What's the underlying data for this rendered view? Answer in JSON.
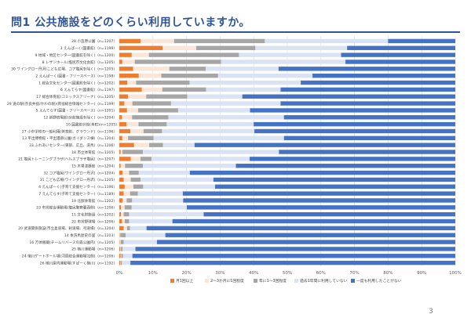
{
  "page": {
    "title": "問1 公共施設をどのくらい利用していますか。",
    "page_number": "3"
  },
  "colors": [
    "#ed7d31",
    "#fbe5d6",
    "#a6a6a6",
    "#dae3f3",
    "#4472c4"
  ],
  "chart_data": {
    "type": "bar",
    "orientation": "horizontal",
    "stacked": true,
    "xlim": [
      0,
      100
    ],
    "xticks": [
      "0%",
      "10%",
      "20%",
      "30%",
      "40%",
      "50%",
      "60%",
      "70%",
      "80%",
      "90%",
      "100%"
    ],
    "legend_position": "bottom",
    "categories": [
      "28 小笠原公園（n=1207）",
      "3 えんぱーく(図書館)（n=1199）",
      "9 地域・地区センター(図書館を除く)（n=1200）",
      "8 レザンホール(塩尻市文化会館)（n=1205）",
      "30 ワイングロー丹沢(こども広場、コア塩尻を除く)（n=1205）",
      "2 えんぱーく(図書・フリースペース)（n=1198）",
      "1 総合文化センター(図書館を除く)（n=1202）",
      "6 えんてらす(図書館)（n=1197）",
      "17 総合体育館(コミックスアリーナ)（n=1205）",
      "29 道の駅(奈良井宿/かわの駅)(両宿総合情報センター)（n=1199）",
      "5 えんてらす(図書・フリースペース)（n=1201）",
      "12 新野宿場館(分館施設を除く)（n=1204）",
      "10 図書館分館(本町)(n=1205)",
      "27 小中学校の一般利用(体育館、グラウンド)（n=1196）",
      "13 平出博物館・平出遺跡公園(ガイダンス棟)（n=1204）",
      "33 ふれあいセンター(東部、広丘、洗馬)（n=1206）",
      "18 市立体育館（n=1205）",
      "21 塩尻トレーニングプラザ(ヘルスプラザ塩尻)（n=1207）",
      "15 木曽漆器館（n=1204）",
      "32 コア塩尻(ワイングロー丹沢)（n=1204）",
      "31 こども広場(ワイングロー丹沢)（n=1205）",
      "4 えんぱーく(子育て支援センター)（n=1196）",
      "7 えんてらす(子育て支援センター)（n=1189）",
      "19 北部体育館（n=1202）",
      "23 市営総合運動場(塩尻警察署西側)（n=1206）",
      "11 文化財施設（n=1202）",
      "22 市営野球場（n=1206）",
      "20 武道関係施設(市立柔道場、剣道場、弓道場)（n=1204）",
      "14 本洗馬歴史の里（n=1203）",
      "16 万体飯蔵(チームリバースの森公園内)（n=1205）",
      "25 楢川運動場（n=1206）",
      "24 楢川ゲートボール場(河原総合運動場北側)（n=1206）",
      "26 楢川屋内運動場(すぱーく楢川)（n=1192）"
    ],
    "series": [
      {
        "name": "月1回以上",
        "values": [
          6.3,
          12.9,
          3.7,
          0.9,
          4.1,
          5.8,
          2.4,
          6.7,
          2.6,
          1.5,
          2.3,
          0.8,
          2.1,
          3.3,
          0.9,
          4.4,
          0.4,
          3.4,
          0.4,
          1.0,
          1.3,
          1.6,
          1.3,
          1.0,
          0.5,
          0.5,
          0.8,
          1.3,
          0.1,
          0.1,
          0.3,
          0.4,
          0.3
        ]
      },
      {
        "name": "2～3か月に1回程度",
        "values": [
          10.0,
          10.0,
          5.1,
          3.7,
          10.8,
          6.7,
          2.6,
          6.1,
          5.4,
          2.4,
          3.3,
          3.0,
          3.6,
          3.9,
          1.7,
          4.5,
          0.5,
          2.9,
          1.3,
          1.9,
          2.1,
          2.6,
          1.9,
          1.2,
          1.1,
          0.8,
          0.8,
          1.0,
          0.2,
          0.3,
          0.2,
          0.2,
          0.1
        ]
      },
      {
        "name": "年に1～3回程度",
        "values": [
          27.0,
          17.6,
          26.8,
          25.7,
          10.8,
          16.9,
          15.9,
          13.0,
          12.2,
          11.5,
          11.9,
          10.8,
          8.4,
          5.5,
          7.6,
          4.1,
          6.1,
          3.3,
          5.3,
          2.9,
          2.9,
          2.9,
          2.3,
          1.6,
          2.1,
          1.6,
          1.3,
          0.9,
          1.6,
          0.9,
          0.5,
          0.5,
          0.3
        ]
      },
      {
        "name": "過去1年間に利用していない",
        "values": [
          36.7,
          27.3,
          30.4,
          37.0,
          21.7,
          28.1,
          33.1,
          22.2,
          16.4,
          32.6,
          21.4,
          34.4,
          25.9,
          27.5,
          38.8,
          9.4,
          40.5,
          29.2,
          27.7,
          15.2,
          21.7,
          21.4,
          13.4,
          15.2,
          16.4,
          22.2,
          12.9,
          4.9,
          11.8,
          9.9,
          3.8,
          2.8,
          2.6
        ]
      },
      {
        "name": "一度も利用したことがない",
        "values": [
          20.0,
          32.2,
          34.0,
          32.7,
          52.6,
          42.5,
          46.0,
          52.0,
          63.4,
          52.0,
          61.1,
          51.0,
          60.0,
          59.8,
          51.0,
          77.6,
          52.5,
          61.2,
          65.3,
          79.0,
          72.0,
          71.5,
          81.1,
          81.0,
          79.9,
          74.9,
          84.2,
          91.9,
          86.3,
          88.8,
          95.2,
          96.1,
          96.7
        ]
      }
    ]
  }
}
